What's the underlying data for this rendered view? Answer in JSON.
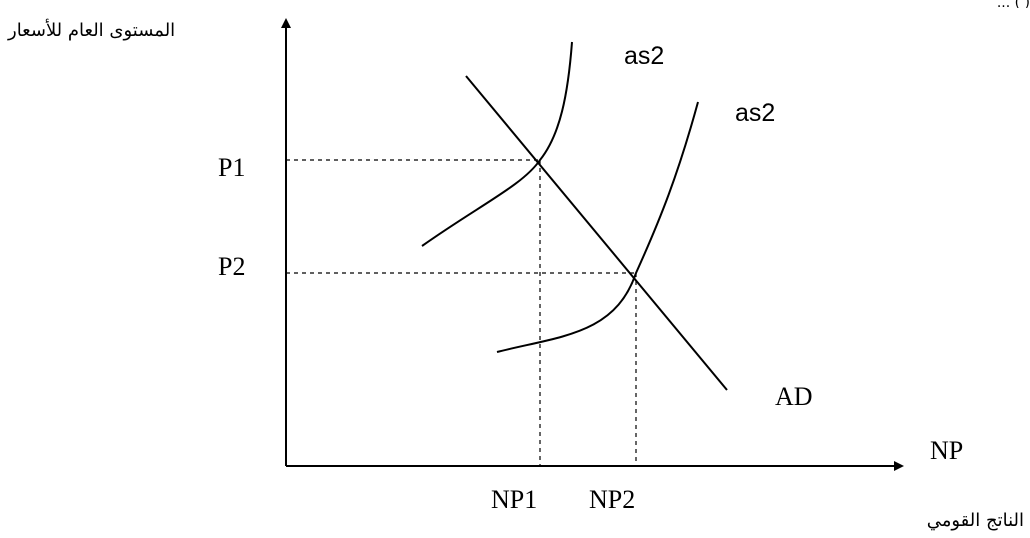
{
  "header_fragment": "( ) ...",
  "diagram": {
    "y_axis_label": "المستوى العام للأسعار",
    "x_axis_label": "الناتج القومي",
    "x_axis_symbol": "NP",
    "price_labels": {
      "p1": "P1",
      "p2": "P2"
    },
    "output_labels": {
      "np1": "NP1",
      "np2": "NP2"
    },
    "curve_labels": {
      "as_first": "as2",
      "as_second": "as2",
      "ad": "AD"
    }
  }
}
